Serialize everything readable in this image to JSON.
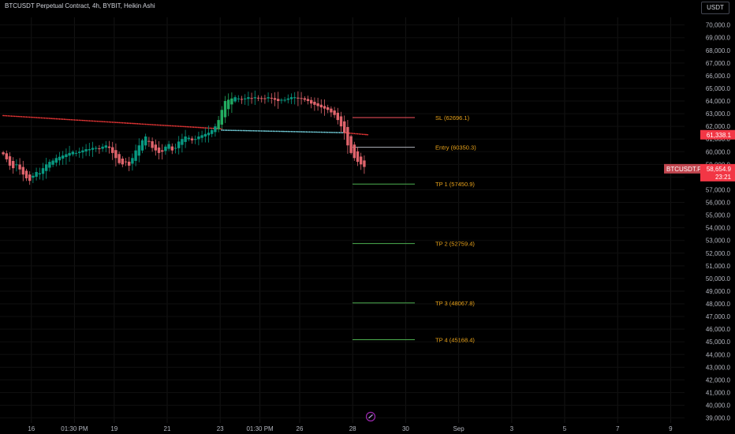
{
  "header": {
    "title": "BTCUSDT Perpetual Contract, 4h, BYBIT, Heikin Ashi",
    "currency": "USDT"
  },
  "colors": {
    "bull": "#089981",
    "bull_bright": "#22ab60",
    "bear": "#f23645",
    "bear_candle": "#e0646c",
    "sl_line": "#f7525f",
    "tp_line": "#4caf50",
    "entry_line": "#b2b5be",
    "level_text": "#e8a21a",
    "trail_bear": "#ff3b3b",
    "trail_bull": "#7fe3f0",
    "price_badge": "#f23645",
    "symbol_badge": "#c0454e"
  },
  "chart_data": {
    "type": "candlestick",
    "title": "BTCUSDT Perpetual Contract, 4h, BYBIT, Heikin Ashi",
    "ylim": [
      38600,
      70600
    ],
    "y_ticks": [
      "39,000.0",
      "40,000.0",
      "41,000.0",
      "42,000.0",
      "43,000.0",
      "44,000.0",
      "45,000.0",
      "46,000.0",
      "47,000.0",
      "48,000.0",
      "49,000.0",
      "50,000.0",
      "51,000.0",
      "52,000.0",
      "53,000.0",
      "54,000.0",
      "55,000.0",
      "56,000.0",
      "57,000.0",
      "58,000.0",
      "59,000.0",
      "60,000.0",
      "61,000.0",
      "62,000.0",
      "63,000.0",
      "64,000.0",
      "65,000.0",
      "66,000.0",
      "67,000.0",
      "68,000.0",
      "69,000.0",
      "70,000.0"
    ],
    "x_ticks": [
      {
        "label": "16",
        "bar": 9
      },
      {
        "label": "01:30 PM",
        "bar": 22
      },
      {
        "label": "19",
        "bar": 34
      },
      {
        "label": "21",
        "bar": 50
      },
      {
        "label": "23",
        "bar": 66
      },
      {
        "label": "01:30 PM",
        "bar": 78
      },
      {
        "label": "26",
        "bar": 90
      },
      {
        "label": "28",
        "bar": 106
      },
      {
        "label": "30",
        "bar": 122
      },
      {
        "label": "Sep",
        "bar": 138
      },
      {
        "label": "3",
        "bar": 154
      },
      {
        "label": "5",
        "bar": 170
      },
      {
        "label": "7",
        "bar": 186
      },
      {
        "label": "9",
        "bar": 202
      }
    ],
    "closes": [
      59800,
      59400,
      58900,
      58700,
      59000,
      58600,
      58200,
      57900,
      57700,
      58100,
      58400,
      58300,
      58700,
      59000,
      59200,
      59300,
      59500,
      59600,
      59700,
      59800,
      59900,
      60000,
      59900,
      60000,
      60100,
      60200,
      60200,
      60300,
      60300,
      60200,
      60400,
      60500,
      60300,
      59900,
      59500,
      59100,
      59000,
      59200,
      58900,
      59500,
      60100,
      60500,
      60900,
      61200,
      60800,
      60300,
      60100,
      59900,
      60000,
      60400,
      60600,
      60100,
      60300,
      60800,
      61000,
      61200,
      61100,
      60900,
      61000,
      61200,
      61300,
      61400,
      61500,
      61700,
      62000,
      62500,
      63300,
      64000,
      64100,
      64200,
      64300,
      64200,
      64100,
      64200,
      64300,
      64200,
      64300,
      64200,
      64200,
      64200,
      64300,
      64200,
      64100,
      64000,
      64100,
      64100,
      64200,
      64300,
      64300,
      64200,
      64200,
      64100,
      64000,
      63800,
      63700,
      63600,
      63500,
      63400,
      63300,
      63100,
      62900,
      62500,
      62000,
      61500,
      60500,
      59900,
      59500,
      59200,
      59000,
      58800
    ],
    "levels": [
      {
        "label": "SL (62696.1)",
        "value": 62696.1,
        "kind": "sl"
      },
      {
        "label": "Entry (60350.3)",
        "value": 60350.3,
        "kind": "entry"
      },
      {
        "label": "TP 1 (57450.9)",
        "value": 57450.9,
        "kind": "tp"
      },
      {
        "label": "TP 2 (52759.4)",
        "value": 52759.4,
        "kind": "tp"
      },
      {
        "label": "TP 3 (48067.8)",
        "value": 48067.8,
        "kind": "tp"
      },
      {
        "label": "TP 4 (45168.4)",
        "value": 45168.4,
        "kind": "tp"
      }
    ],
    "trailing_stop": {
      "bear_start": 62850,
      "bear_end": 61800,
      "bear_from_bar": 0,
      "bear_to_bar": 66,
      "bull_start": 61700,
      "bull_end": 61500,
      "bull_from_bar": 66,
      "bull_to_bar": 103,
      "bear2_start": 61500,
      "bear2_end": 61338,
      "bear2_from_bar": 103,
      "bear2_to_bar": 110
    },
    "price_badge": {
      "value": 61338.1,
      "label": "61,338.1"
    },
    "symbol_badge": {
      "symbol": "BTCUSDT.P",
      "price": 58654.9,
      "label": "58,654.9",
      "countdown": "23:21"
    }
  }
}
